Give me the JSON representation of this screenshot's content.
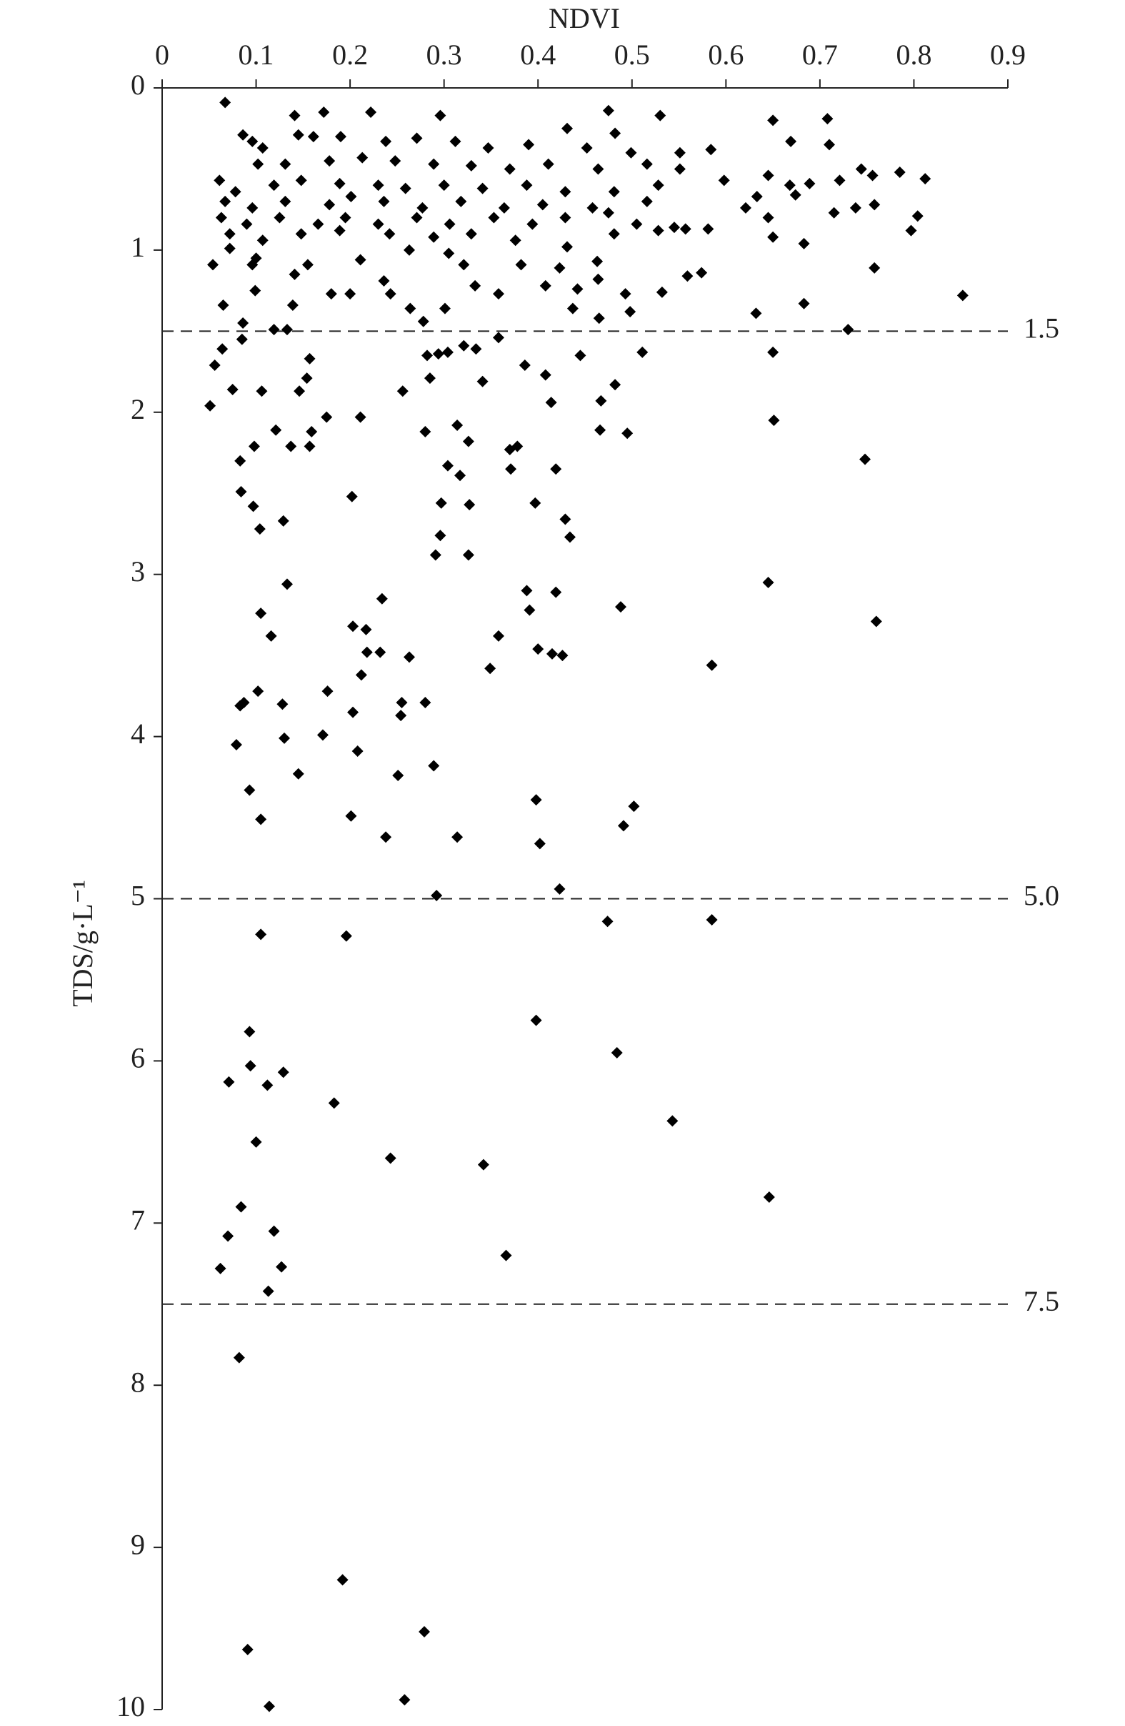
{
  "chart_data": {
    "type": "scatter",
    "x_label": "NDVI",
    "y_label": "TDS/g·L⁻¹",
    "xlim": [
      0,
      0.9
    ],
    "xticks": [
      0,
      0.1,
      0.2,
      0.3,
      0.4,
      0.5,
      0.6,
      0.7,
      0.8,
      0.9
    ],
    "ylim": [
      0,
      10
    ],
    "yticks": [
      0,
      1,
      2,
      3,
      4,
      5,
      6,
      7,
      8,
      9,
      10
    ],
    "y_inverted": true,
    "x_axis_position": "top",
    "color": "#000000",
    "marker": "diamond",
    "reference_lines": [
      1.5,
      {
        "value": 5,
        "label": "5.0"
      },
      7.5
    ],
    "series": [
      {
        "x": [
          0.091,
          0.114,
          0.192,
          0.258,
          0.279,
          0.082,
          0.113,
          0.062,
          0.07,
          0.119,
          0.127,
          0.084,
          0.366,
          0.646,
          0.1,
          0.243,
          0.342,
          0.543,
          0.183,
          0.071,
          0.094,
          0.112,
          0.129,
          0.093,
          0.398,
          0.484,
          0.105,
          0.196,
          0.474,
          0.585,
          0.292,
          0.423,
          0.105,
          0.093,
          0.201,
          0.238,
          0.314,
          0.398,
          0.402,
          0.491,
          0.502,
          0.079,
          0.13,
          0.145,
          0.171,
          0.208,
          0.203,
          0.251,
          0.254,
          0.255,
          0.289,
          0.28,
          0.087,
          0.083,
          0.102,
          0.128,
          0.176,
          0.105,
          0.116,
          0.133,
          0.203,
          0.217,
          0.212,
          0.218,
          0.232,
          0.234,
          0.263,
          0.349,
          0.358,
          0.388,
          0.391,
          0.4,
          0.419,
          0.415,
          0.426,
          0.488,
          0.585,
          0.645,
          0.76,
          0.748,
          0.104,
          0.097,
          0.084,
          0.129,
          0.083,
          0.098,
          0.121,
          0.137,
          0.157,
          0.159,
          0.175,
          0.202,
          0.211,
          0.28,
          0.314,
          0.304,
          0.317,
          0.326,
          0.297,
          0.296,
          0.291,
          0.327,
          0.326,
          0.371,
          0.378,
          0.37,
          0.397,
          0.419,
          0.429,
          0.434,
          0.466,
          0.495,
          0.651,
          0.106,
          0.075,
          0.056,
          0.064,
          0.085,
          0.086,
          0.119,
          0.133,
          0.157,
          0.154,
          0.146,
          0.256,
          0.285,
          0.282,
          0.294,
          0.304,
          0.321,
          0.334,
          0.341,
          0.358,
          0.386,
          0.408,
          0.414,
          0.445,
          0.467,
          0.482,
          0.511,
          0.65,
          0.73,
          0.632,
          0.683,
          0.852,
          0.758,
          0.574,
          0.559,
          0.532,
          0.493,
          0.498,
          0.464,
          0.465,
          0.437,
          0.442,
          0.408,
          0.423,
          0.358,
          0.333,
          0.301,
          0.278,
          0.264,
          0.236,
          0.243,
          0.2,
          0.18,
          0.139,
          0.099,
          0.065,
          0.054,
          0.072,
          0.096,
          0.1,
          0.141,
          0.155,
          0.211,
          0.263,
          0.305,
          0.321,
          0.382,
          0.431,
          0.463,
          0.65,
          0.683,
          0.797,
          0.804,
          0.067,
          0.172,
          0.222,
          0.296,
          0.475,
          0.53,
          0.65,
          0.708,
          0.141,
          0.086,
          0.145,
          0.431,
          0.482,
          0.669,
          0.71,
          0.096,
          0.107,
          0.161,
          0.19,
          0.238,
          0.271,
          0.312,
          0.347,
          0.39,
          0.452,
          0.499,
          0.551,
          0.584,
          0.102,
          0.131,
          0.178,
          0.213,
          0.248,
          0.289,
          0.329,
          0.37,
          0.411,
          0.464,
          0.516,
          0.551,
          0.645,
          0.744,
          0.756,
          0.785,
          0.812,
          0.061,
          0.078,
          0.119,
          0.148,
          0.189,
          0.23,
          0.259,
          0.3,
          0.341,
          0.388,
          0.429,
          0.481,
          0.528,
          0.598,
          0.668,
          0.689,
          0.721,
          0.067,
          0.096,
          0.131,
          0.178,
          0.201,
          0.236,
          0.277,
          0.318,
          0.364,
          0.405,
          0.458,
          0.516,
          0.633,
          0.674,
          0.063,
          0.09,
          0.125,
          0.166,
          0.195,
          0.23,
          0.271,
          0.306,
          0.353,
          0.394,
          0.429,
          0.475,
          0.505,
          0.545,
          0.581,
          0.621,
          0.758,
          0.072,
          0.107,
          0.148,
          0.189,
          0.242,
          0.289,
          0.329,
          0.376,
          0.481,
          0.528,
          0.557,
          0.645,
          0.715,
          0.738,
          0.051
        ],
        "values": [
          9.63,
          9.98,
          9.2,
          9.94,
          9.52,
          7.83,
          7.42,
          7.28,
          7.08,
          7.05,
          7.27,
          6.9,
          7.2,
          6.84,
          6.5,
          6.6,
          6.64,
          6.37,
          6.26,
          6.13,
          6.03,
          6.15,
          6.07,
          5.82,
          5.75,
          5.95,
          5.22,
          5.23,
          5.14,
          5.13,
          4.98,
          4.94,
          4.51,
          4.33,
          4.49,
          4.62,
          4.62,
          4.39,
          4.66,
          4.55,
          4.43,
          4.05,
          4.01,
          4.23,
          3.99,
          4.09,
          3.85,
          4.24,
          3.87,
          3.79,
          4.18,
          3.79,
          3.79,
          3.81,
          3.72,
          3.8,
          3.72,
          3.24,
          3.38,
          3.06,
          3.32,
          3.34,
          3.62,
          3.48,
          3.48,
          3.15,
          3.51,
          3.58,
          3.38,
          3.1,
          3.22,
          3.46,
          3.11,
          3.49,
          3.5,
          3.2,
          3.56,
          3.05,
          3.29,
          2.29,
          2.72,
          2.58,
          2.49,
          2.67,
          2.3,
          2.21,
          2.11,
          2.21,
          2.21,
          2.12,
          2.03,
          2.52,
          2.03,
          2.12,
          2.08,
          2.33,
          2.39,
          2.18,
          2.56,
          2.76,
          2.88,
          2.57,
          2.88,
          2.35,
          2.21,
          2.23,
          2.56,
          2.35,
          2.66,
          2.77,
          2.11,
          2.13,
          2.05,
          1.87,
          1.86,
          1.71,
          1.61,
          1.55,
          1.45,
          1.49,
          1.49,
          1.67,
          1.79,
          1.87,
          1.87,
          1.79,
          1.65,
          1.64,
          1.63,
          1.59,
          1.61,
          1.81,
          1.54,
          1.71,
          1.77,
          1.94,
          1.65,
          1.93,
          1.83,
          1.63,
          1.63,
          1.49,
          1.39,
          1.33,
          1.28,
          1.11,
          1.14,
          1.16,
          1.26,
          1.27,
          1.38,
          1.18,
          1.42,
          1.36,
          1.24,
          1.22,
          1.11,
          1.27,
          1.22,
          1.36,
          1.44,
          1.36,
          1.19,
          1.27,
          1.27,
          1.27,
          1.34,
          1.25,
          1.34,
          1.09,
          0.99,
          1.09,
          1.05,
          1.15,
          1.09,
          1.06,
          1.0,
          1.02,
          1.09,
          1.09,
          0.98,
          1.07,
          0.92,
          0.96,
          0.88,
          0.79,
          0.09,
          0.15,
          0.15,
          0.17,
          0.14,
          0.17,
          0.2,
          0.19,
          0.17,
          0.29,
          0.29,
          0.25,
          0.28,
          0.33,
          0.35,
          0.33,
          0.37,
          0.3,
          0.3,
          0.33,
          0.31,
          0.33,
          0.37,
          0.35,
          0.37,
          0.4,
          0.4,
          0.38,
          0.47,
          0.47,
          0.45,
          0.43,
          0.45,
          0.47,
          0.48,
          0.5,
          0.47,
          0.5,
          0.47,
          0.5,
          0.54,
          0.5,
          0.54,
          0.52,
          0.56,
          0.57,
          0.64,
          0.6,
          0.57,
          0.59,
          0.6,
          0.62,
          0.6,
          0.62,
          0.6,
          0.64,
          0.64,
          0.6,
          0.57,
          0.6,
          0.59,
          0.57,
          0.7,
          0.74,
          0.7,
          0.72,
          0.67,
          0.7,
          0.74,
          0.7,
          0.74,
          0.72,
          0.74,
          0.7,
          0.67,
          0.66,
          0.8,
          0.84,
          0.8,
          0.84,
          0.8,
          0.84,
          0.8,
          0.84,
          0.8,
          0.84,
          0.8,
          0.77,
          0.84,
          0.86,
          0.87,
          0.74,
          0.72,
          0.9,
          0.94,
          0.9,
          0.88,
          0.9,
          0.92,
          0.9,
          0.94,
          0.9,
          0.88,
          0.87,
          0.8,
          0.77,
          0.74,
          1.96
        ]
      }
    ]
  }
}
